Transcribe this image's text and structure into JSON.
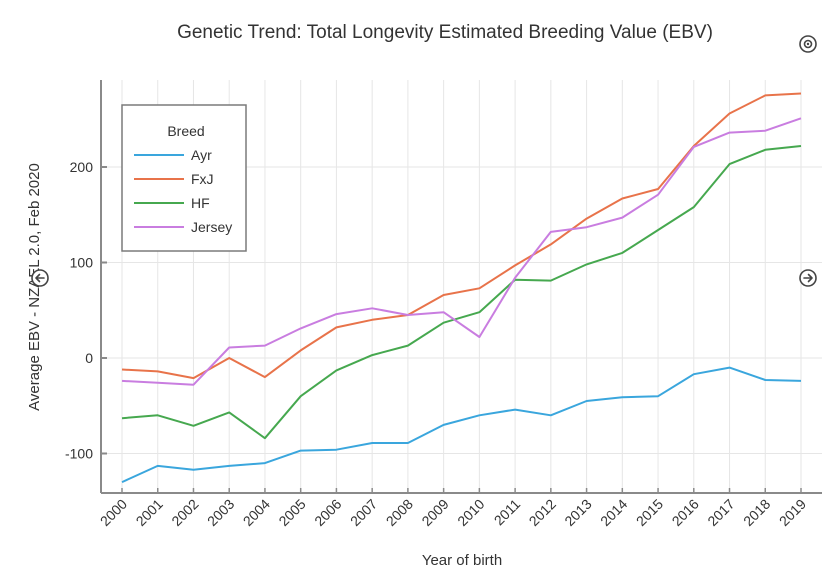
{
  "chart_data": {
    "type": "line",
    "title": "Genetic Trend: Total Longevity Estimated Breeding Value (EBV)",
    "xlabel": "Year of birth",
    "ylabel": "Average EBV - NZAEL 2.0, Feb 2020",
    "x": [
      "2000",
      "2001",
      "2002",
      "2003",
      "2004",
      "2005",
      "2006",
      "2007",
      "2008",
      "2009",
      "2010",
      "2011",
      "2012",
      "2013",
      "2014",
      "2015",
      "2016",
      "2017",
      "2018",
      "2019"
    ],
    "ylim": [
      -140,
      290
    ],
    "yticks": [
      -100,
      0,
      100,
      200
    ],
    "ytick_labels": [
      "-100",
      "0",
      "100",
      "200"
    ],
    "grid": true,
    "legend": {
      "title": "Breed",
      "position": "top-left"
    },
    "series": [
      {
        "name": "Ayr",
        "color": "#3aa6dd",
        "values": [
          -130,
          -113,
          -117,
          -113,
          -110,
          -97,
          -96,
          -89,
          -89,
          -70,
          -60,
          -54,
          -60,
          -45,
          -41,
          -40,
          -17,
          -10,
          -23,
          -24
        ]
      },
      {
        "name": "FxJ",
        "color": "#e8734a",
        "values": [
          -12,
          -14,
          -21,
          0,
          -20,
          8,
          32,
          40,
          45,
          66,
          73,
          97,
          119,
          146,
          167,
          177,
          222,
          256,
          275,
          277
        ]
      },
      {
        "name": "HF",
        "color": "#46a84f",
        "values": [
          -63,
          -60,
          -71,
          -57,
          -84,
          -40,
          -13,
          3,
          13,
          37,
          48,
          82,
          81,
          98,
          110,
          134,
          158,
          203,
          218,
          222
        ]
      },
      {
        "name": "Jersey",
        "color": "#c97de0",
        "values": [
          -24,
          -26,
          -28,
          11,
          13,
          31,
          46,
          52,
          45,
          48,
          22,
          84,
          132,
          137,
          147,
          171,
          221,
          236,
          238,
          251
        ]
      }
    ]
  },
  "controls": {
    "close_icon": "close-circle-icon",
    "prev_icon": "arrow-left-circle-icon",
    "next_icon": "arrow-right-circle-icon"
  }
}
